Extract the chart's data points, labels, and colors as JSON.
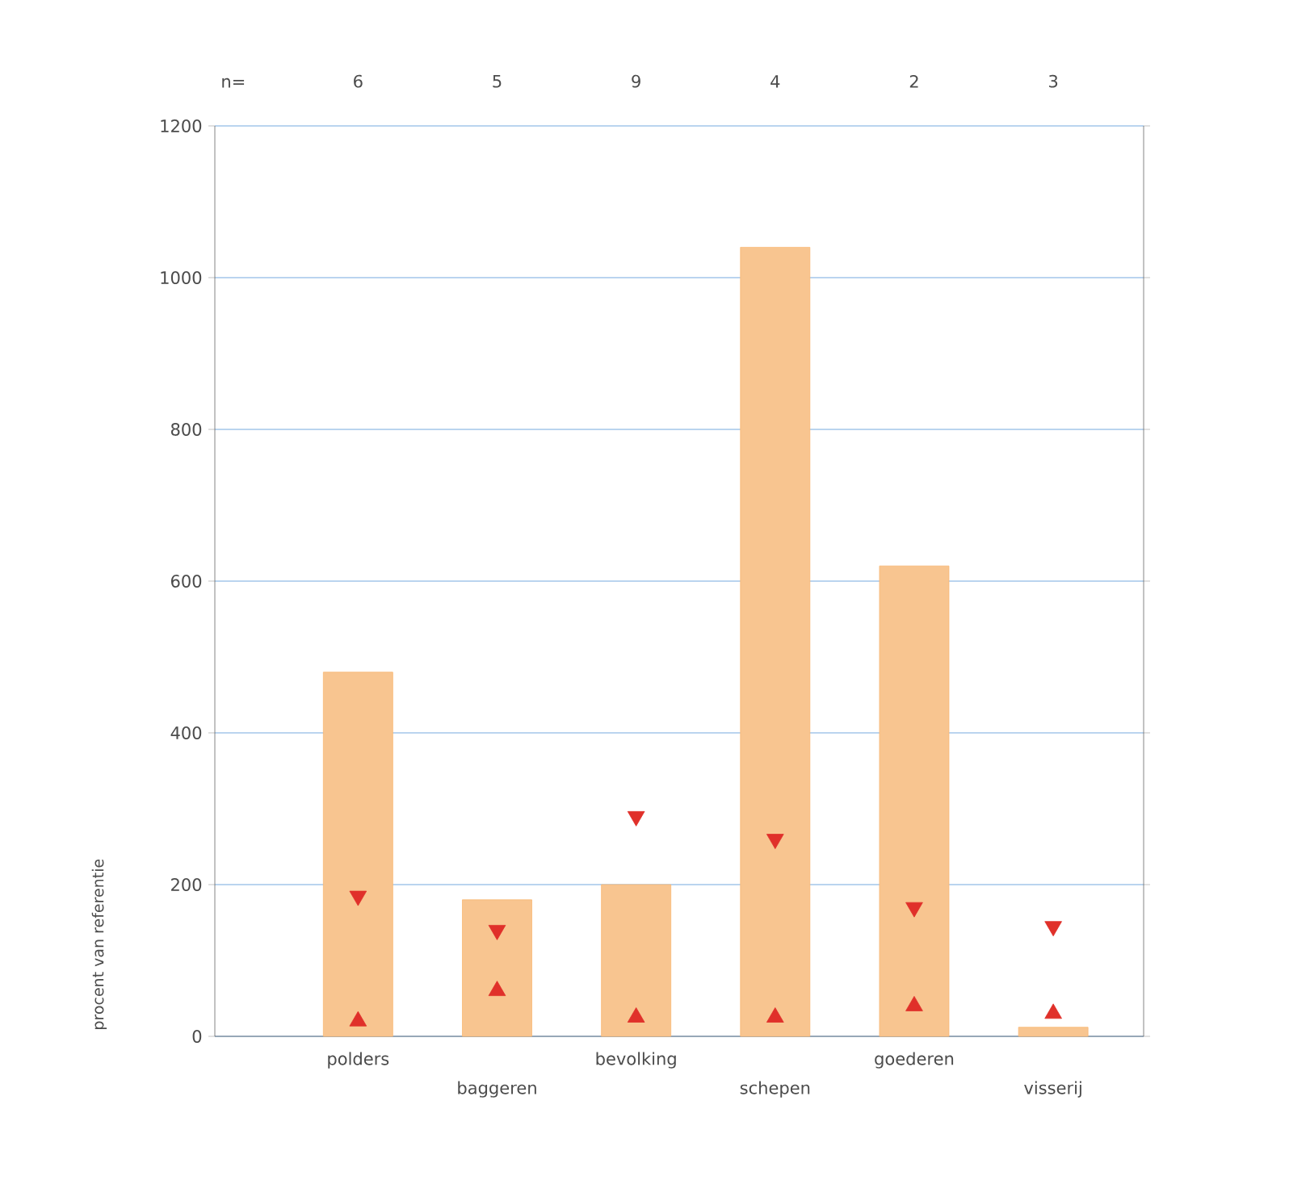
{
  "chart_data": {
    "type": "bar",
    "ylabel": "procent van referentie",
    "categories": [
      "polders",
      "baggeren",
      "bevolking",
      "schepen",
      "goederen",
      "visserij"
    ],
    "series": [
      {
        "color": "#f8c590",
        "values": [
          480,
          180,
          200,
          1040,
          620,
          12
        ]
      },
      {
        "type": "scatter",
        "marker": "triangle-down",
        "color": "#e0302a",
        "values": [
          185,
          140,
          290,
          260,
          170,
          145
        ]
      },
      {
        "type": "scatter",
        "marker": "triangle",
        "color": "#e0302a",
        "values": [
          20,
          60,
          25,
          25,
          40,
          30
        ]
      }
    ],
    "ylim": [
      0,
      1200
    ],
    "yticks": [
      0,
      200,
      400,
      600,
      800,
      1000,
      1200
    ],
    "grid": "y",
    "annotations": [
      "n=",
      "6",
      "5",
      "9",
      "4",
      "2",
      "3"
    ]
  }
}
